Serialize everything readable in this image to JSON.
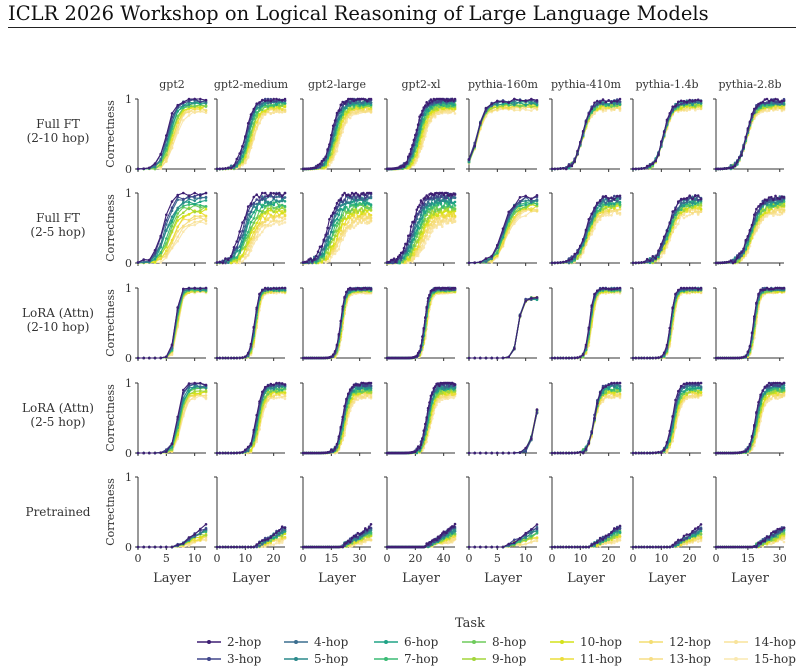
{
  "page": {
    "header": "ICLR 2026 Workshop on Logical Reasoning of Large Language Models"
  },
  "chart_data": {
    "type": "line",
    "xlabel": "Layer",
    "ylabel": "Correctness",
    "ylim": [
      0,
      1
    ],
    "yticks": [
      0,
      1
    ],
    "legend": {
      "title": "Task",
      "placement": "bottom-center",
      "entries": [
        "2-hop",
        "3-hop",
        "4-hop",
        "5-hop",
        "6-hop",
        "7-hop",
        "8-hop",
        "9-hop",
        "10-hop",
        "11-hop",
        "12-hop",
        "13-hop",
        "14-hop",
        "15-hop"
      ]
    },
    "colors": [
      "#3e1f73",
      "#40468b",
      "#3b6e8f",
      "#2c8a8c",
      "#20a386",
      "#3bbb75",
      "#6fcb5c",
      "#a3d63b",
      "#d4e21a",
      "#ecdd3c",
      "#f4dd72",
      "#f7de85",
      "#f8e39b",
      "#fae8b0"
    ],
    "models": [
      {
        "name": "gpt2",
        "layers": 12,
        "xticks": [
          0,
          5,
          10
        ]
      },
      {
        "name": "gpt2-medium",
        "layers": 24,
        "xticks": [
          0,
          10,
          20
        ]
      },
      {
        "name": "gpt2-large",
        "layers": 36,
        "xticks": [
          0,
          15,
          30
        ]
      },
      {
        "name": "gpt2-xl",
        "layers": 48,
        "xticks": [
          0,
          20,
          40
        ]
      },
      {
        "name": "pythia-160m",
        "layers": 12,
        "xticks": [
          0,
          5,
          10
        ]
      },
      {
        "name": "pythia-410m",
        "layers": 24,
        "xticks": [
          0,
          10,
          20
        ]
      },
      {
        "name": "pythia-1.4b",
        "layers": 24,
        "xticks": [
          0,
          10,
          20
        ]
      },
      {
        "name": "pythia-2.8b",
        "layers": 32,
        "xticks": [
          0,
          15,
          30
        ]
      }
    ],
    "rows": [
      {
        "label": [
          "Full FT",
          "(2-10 hop)"
        ],
        "kind": "fft10"
      },
      {
        "label": [
          "Full FT",
          "(2-5 hop)"
        ],
        "kind": "fft5"
      },
      {
        "label": [
          "LoRA (Attn)",
          "(2-10 hop)"
        ],
        "kind": "lora10"
      },
      {
        "label": [
          "LoRA (Attn)",
          "(2-5 hop)"
        ],
        "kind": "lora5"
      },
      {
        "label": [
          "Pretrained"
        ],
        "kind": "pre"
      }
    ]
  }
}
